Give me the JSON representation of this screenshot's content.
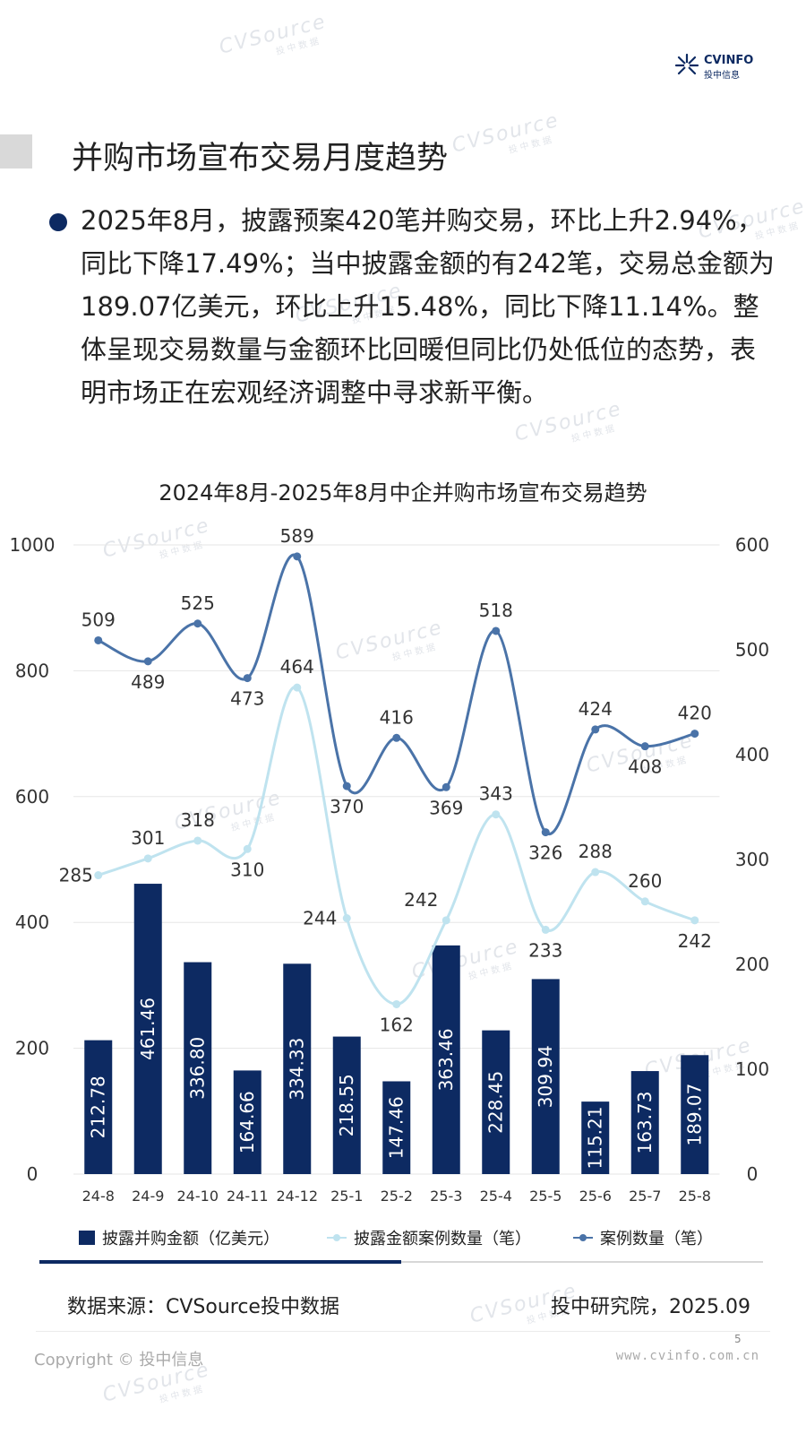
{
  "watermark": {
    "brand": "CVSource",
    "sub": "投中数据"
  },
  "logo": {
    "brand": "CVINFO",
    "sub": "投中信息"
  },
  "page_title": "并购市场宣布交易月度趋势",
  "summary": "2025年8月，披露预案420笔并购交易，环比上升2.94%，同比下降17.49%；当中披露金额的有242笔，交易总金额为189.07亿美元，环比上升15.48%，同比下降11.14%。整体呈现交易数量与金额环比回暖但同比仍处低位的态势，表明市场正在宏观经济调整中寻求新平衡。",
  "chart_title": "2024年8月-2025年8月中企并购市场宣布交易趋势",
  "colors": {
    "bar": "#0d2a62",
    "disclosed_line": "#bfe3ef",
    "count_line": "#4a73a8",
    "grid": "#e6e6e6"
  },
  "chart_data": {
    "type": "bar+line",
    "categories": [
      "24-8",
      "24-9",
      "24-10",
      "24-11",
      "24-12",
      "25-1",
      "25-2",
      "25-3",
      "25-4",
      "25-5",
      "25-6",
      "25-7",
      "25-8"
    ],
    "series": [
      {
        "name": "披露并购金额（亿美元）",
        "type": "bar",
        "axis": "left",
        "values": [
          212.78,
          461.46,
          336.8,
          164.66,
          334.33,
          218.55,
          147.46,
          363.46,
          228.45,
          309.94,
          115.21,
          163.73,
          189.07
        ],
        "labels": [
          "212.78",
          "461.46",
          "336.80",
          "164.66",
          "334.33",
          "218.55",
          "147.46",
          "363.46",
          "228.45",
          "309.94",
          "115.21",
          "163.73",
          "189.07"
        ]
      },
      {
        "name": "披露金额案例数量（笔）",
        "type": "line",
        "axis": "right",
        "values": [
          285,
          301,
          318,
          310,
          464,
          244,
          162,
          242,
          343,
          233,
          288,
          260,
          242
        ]
      },
      {
        "name": "案例数量（笔）",
        "type": "line",
        "axis": "right",
        "values": [
          509,
          489,
          525,
          473,
          589,
          370,
          416,
          369,
          518,
          326,
          424,
          408,
          420
        ]
      }
    ],
    "left_axis": {
      "range": [
        0,
        1000
      ],
      "ticks": [
        "0",
        "200",
        "400",
        "600",
        "800",
        "1000"
      ]
    },
    "right_axis": {
      "range": [
        0,
        600
      ],
      "ticks": [
        "0",
        "100",
        "200",
        "300",
        "400",
        "500",
        "600"
      ]
    },
    "grid": true,
    "legend_position": "bottom"
  },
  "footer": {
    "source": "数据来源：CVSource投中数据",
    "credit": "投中研究院，2025.09",
    "page_number": "5",
    "copyright": "Copyright © 投中信息",
    "website": "www.cvinfo.com.cn"
  }
}
